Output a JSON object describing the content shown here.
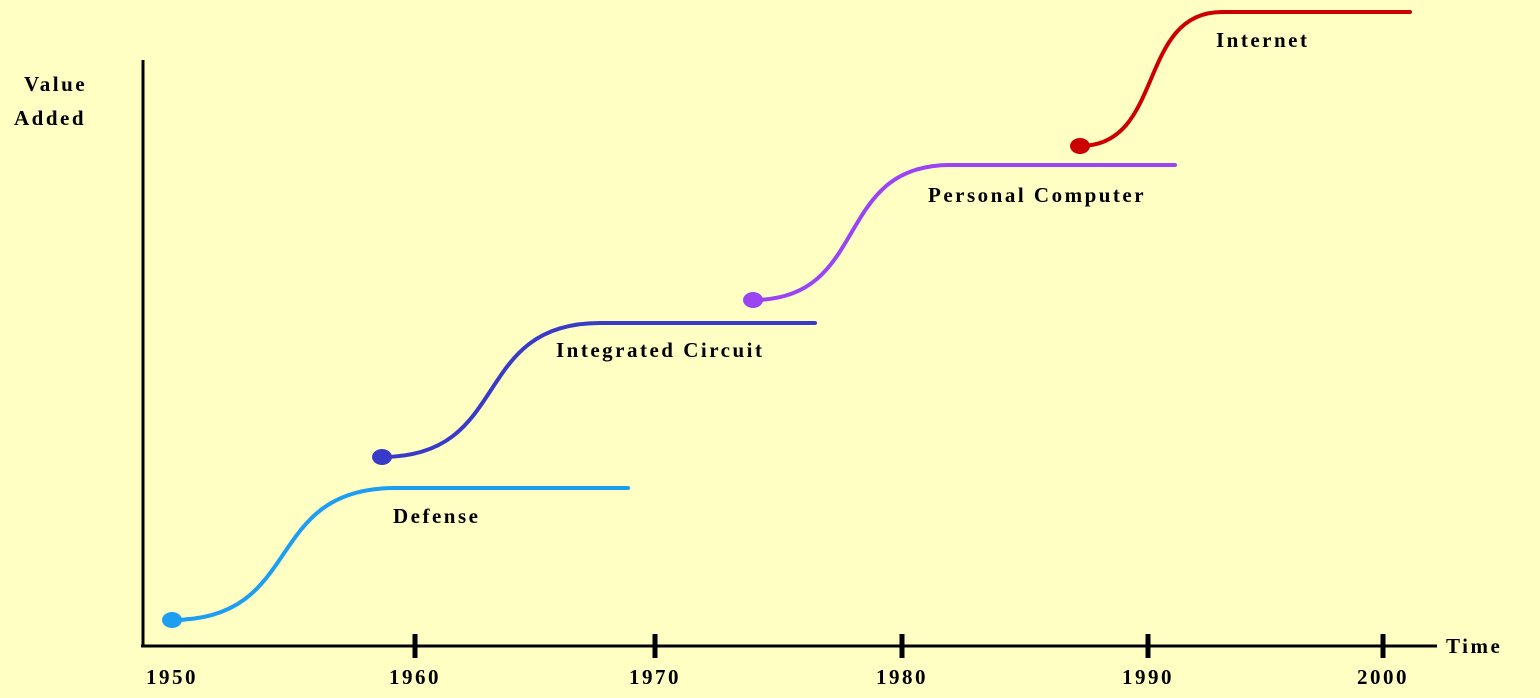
{
  "y_axis_label": [
    "Value",
    "Added"
  ],
  "x_axis_label": "Time",
  "x_ticks": [
    1950,
    1960,
    1970,
    1980,
    1990,
    2000
  ],
  "curves": [
    {
      "label": "Defense"
    },
    {
      "label": "Integrated Circuit"
    },
    {
      "label": "Personal Computer"
    },
    {
      "label": "Internet"
    }
  ]
}
